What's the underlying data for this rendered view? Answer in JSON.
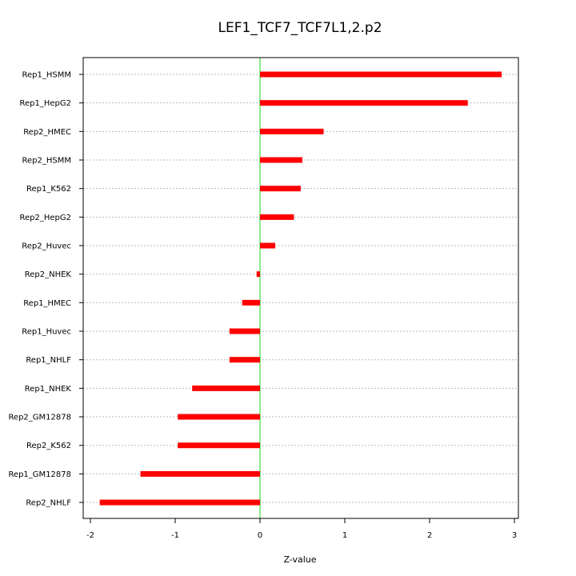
{
  "chart_data": {
    "type": "bar",
    "orientation": "horizontal",
    "title": "LEF1_TCF7_TCF7L1,2.p2",
    "xlabel": "Z-value",
    "ylabel": "",
    "xlim": [
      -2.0,
      3.0
    ],
    "xticks": [
      -2,
      -1,
      0,
      1,
      2,
      3
    ],
    "grid": true,
    "legend": "none",
    "bar_color": "#ff0000",
    "zero_line_color": "#3fdc3f",
    "categories": [
      "Rep1_HSMM",
      "Rep1_HepG2",
      "Rep2_HMEC",
      "Rep2_HSMM",
      "Rep1_K562",
      "Rep2_HepG2",
      "Rep2_Huvec",
      "Rep2_NHEK",
      "Rep1_HMEC",
      "Rep1_Huvec",
      "Rep1_NHLF",
      "Rep1_NHEK",
      "Rep2_GM12878",
      "Rep2_K562",
      "Rep1_GM12878",
      "Rep2_NHLF"
    ],
    "values": [
      2.85,
      2.45,
      0.75,
      0.5,
      0.48,
      0.4,
      0.18,
      -0.04,
      -0.21,
      -0.36,
      -0.36,
      -0.8,
      -0.97,
      -0.97,
      -1.41,
      -1.89
    ]
  }
}
